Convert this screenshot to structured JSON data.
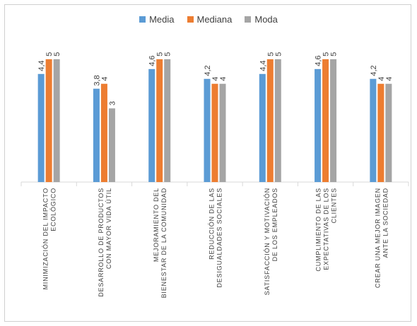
{
  "chart_data": {
    "type": "bar",
    "categories": [
      [
        "MINIMIZACIÓN DEL IMPACTO",
        "ECOLÓGICO"
      ],
      [
        "DESARROLLO DE PRODUCTOS",
        "CON MAYOR VIDA ÚTIL"
      ],
      [
        "MEJORAMIENTO DEL",
        "BIENESTAR DE LA COMUNIDAD"
      ],
      [
        "REDUCCIÓN DE LAS",
        "DESIGUALDADES SOCIALES"
      ],
      [
        "SATISFACCIÓN Y MOTIVACIÓN",
        "DE LOS EMPLEADOS"
      ],
      [
        "CUMPLIMIENTO DE LAS",
        "EXPECTATIVAS DE LOS",
        "CLIENTES"
      ],
      [
        "CREAR UNA MEJOR IMAGEN",
        "ANTE LA SOCIEDAD"
      ]
    ],
    "series": [
      {
        "name": "Media",
        "color": "#5B9BD5",
        "values": [
          4.4,
          3.8,
          4.6,
          4.2,
          4.4,
          4.6,
          4.2
        ],
        "labels": [
          "4,4",
          "3,8",
          "4,6",
          "4,2",
          "4,4",
          "4,6",
          "4,2"
        ]
      },
      {
        "name": "Mediana",
        "color": "#ED7D31",
        "values": [
          5,
          4,
          5,
          4,
          5,
          5,
          4
        ],
        "labels": [
          "5",
          "4",
          "5",
          "4",
          "5",
          "5",
          "4"
        ]
      },
      {
        "name": "Moda",
        "color": "#A5A5A5",
        "values": [
          5,
          3,
          5,
          4,
          5,
          5,
          4
        ],
        "labels": [
          "5",
          "3",
          "5",
          "4",
          "5",
          "5",
          "4"
        ]
      }
    ],
    "ylim": [
      0,
      5.4
    ],
    "grid": false,
    "legend": "top"
  }
}
